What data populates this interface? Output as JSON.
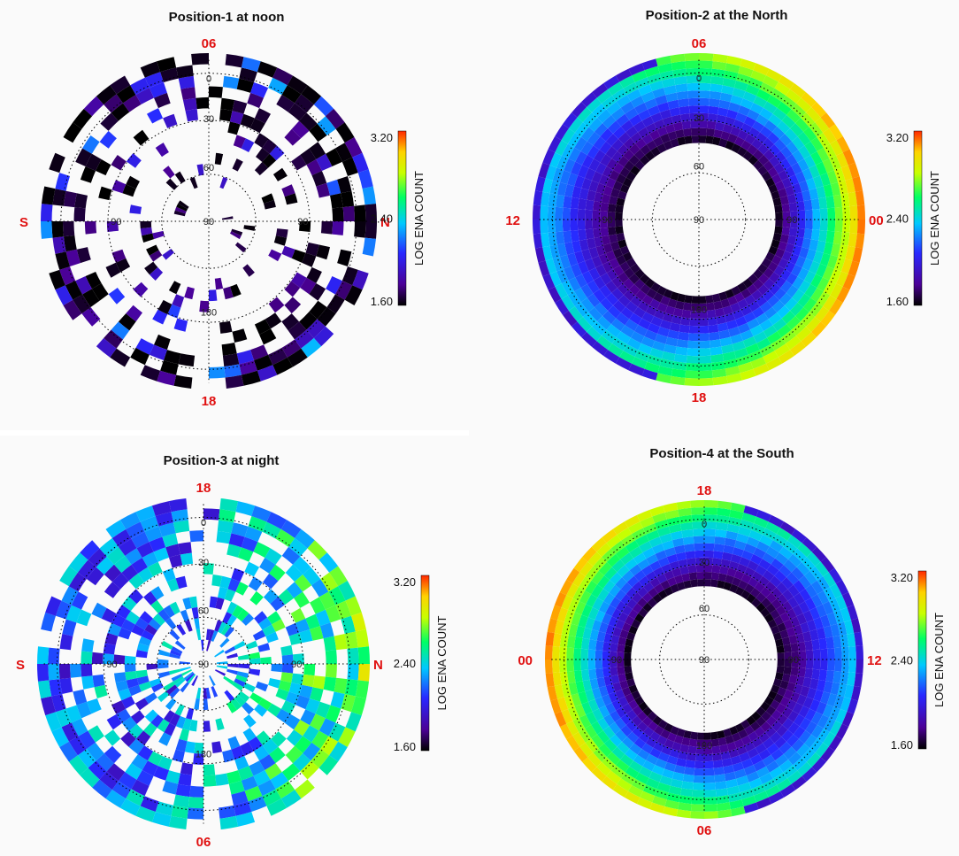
{
  "colors": {
    "background": "#fafafa",
    "label_red": "#e01010",
    "colormap": [
      "#000000",
      "#4b0096",
      "#2828ff",
      "#00c8ff",
      "#00ff64",
      "#c8ff00",
      "#ffd200",
      "#ff2800"
    ]
  },
  "chart_data": [
    {
      "type": "heatmap",
      "projection": "polar",
      "title": "Position-1 at noon",
      "direction_labels": {
        "top": "06",
        "bottom": "18",
        "left": "S",
        "right": "N"
      },
      "angle_labels": {
        "top": "0",
        "upper": "30",
        "inner": "60",
        "center": "90",
        "left": "-90",
        "right": "90",
        "bottom": "180"
      },
      "colorbar": {
        "title": "LOG ENA COUNT",
        "min_label": "1.60",
        "mid_label": "2.40",
        "max_label": "3.20",
        "min": 1.6,
        "max": 3.2
      },
      "pattern": "sparse",
      "value_range": [
        1.6,
        2.35
      ],
      "notes": "sparse cells, mostly 1.6–1.8 (dark purple), occasional blue/cyan near outer edge"
    },
    {
      "type": "heatmap",
      "projection": "polar",
      "title": "Position-2 at the North",
      "direction_labels": {
        "top": "06",
        "bottom": "18",
        "left": "12",
        "right": "00"
      },
      "angle_labels": {
        "top": "0",
        "upper": "30",
        "inner": "60",
        "center": "90",
        "left": "-90",
        "right": "90",
        "bottom": "180"
      },
      "colorbar": {
        "title": "LOG ENA COUNT",
        "min_label": "1.60",
        "mid_label": "2.40",
        "max_label": "3.20",
        "min": 1.6,
        "max": 3.2
      },
      "pattern": "annulus",
      "value_range": [
        1.6,
        3.2
      ],
      "notes": "full annulus; value rises with radius and toward the 00 side (right), peaking ~3.1 at right outer edge"
    },
    {
      "type": "heatmap",
      "projection": "polar",
      "title": "Position-3 at night",
      "direction_labels": {
        "top": "18",
        "bottom": "06",
        "left": "S",
        "right": "N"
      },
      "angle_labels": {
        "top": "0",
        "upper": "30",
        "inner": "60",
        "center": "90",
        "left": "-90",
        "right": "90",
        "bottom": "180"
      },
      "colorbar": {
        "title": "LOG ENA COUNT",
        "min_label": "1.60",
        "mid_label": "2.40",
        "max_label": "3.20",
        "min": 1.6,
        "max": 3.2
      },
      "pattern": "dense",
      "value_range": [
        1.6,
        3.0
      ],
      "notes": "dense patchy cells, mostly blue/cyan/green 2.0–2.6, higher (yellow/orange) toward outer right"
    },
    {
      "type": "heatmap",
      "projection": "polar",
      "title": "Position-4 at the South",
      "direction_labels": {
        "top": "18",
        "bottom": "06",
        "left": "00",
        "right": "12"
      },
      "angle_labels": {
        "top": "0",
        "upper": "30",
        "inner": "60",
        "center": "90",
        "left": "-90",
        "right": "90",
        "bottom": "180"
      },
      "colorbar": {
        "title": "LOG ENA COUNT",
        "min_label": "1.60",
        "mid_label": "2.40",
        "max_label": "3.20",
        "min": 1.6,
        "max": 3.2
      },
      "pattern": "annulus",
      "value_range": [
        1.6,
        3.2
      ],
      "notes": "full annulus; value rises with radius and toward the 00 side (left), peaking ~3.1 at left outer edge"
    }
  ]
}
